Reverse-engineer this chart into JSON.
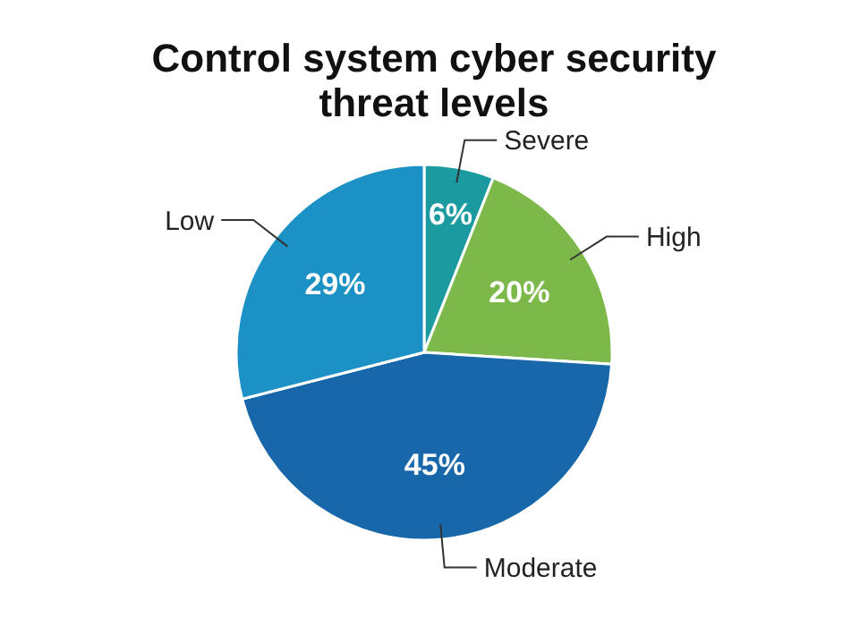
{
  "chart_data": {
    "type": "pie",
    "title": "Control system cyber security threat levels",
    "categories": [
      "Severe",
      "High",
      "Moderate",
      "Low"
    ],
    "values": [
      6,
      20,
      45,
      29
    ],
    "colors": [
      "#1b9aa0",
      "#7cb84a",
      "#1767aa",
      "#1b91c5"
    ],
    "value_labels": [
      "6%",
      "20%",
      "45%",
      "29%"
    ]
  }
}
